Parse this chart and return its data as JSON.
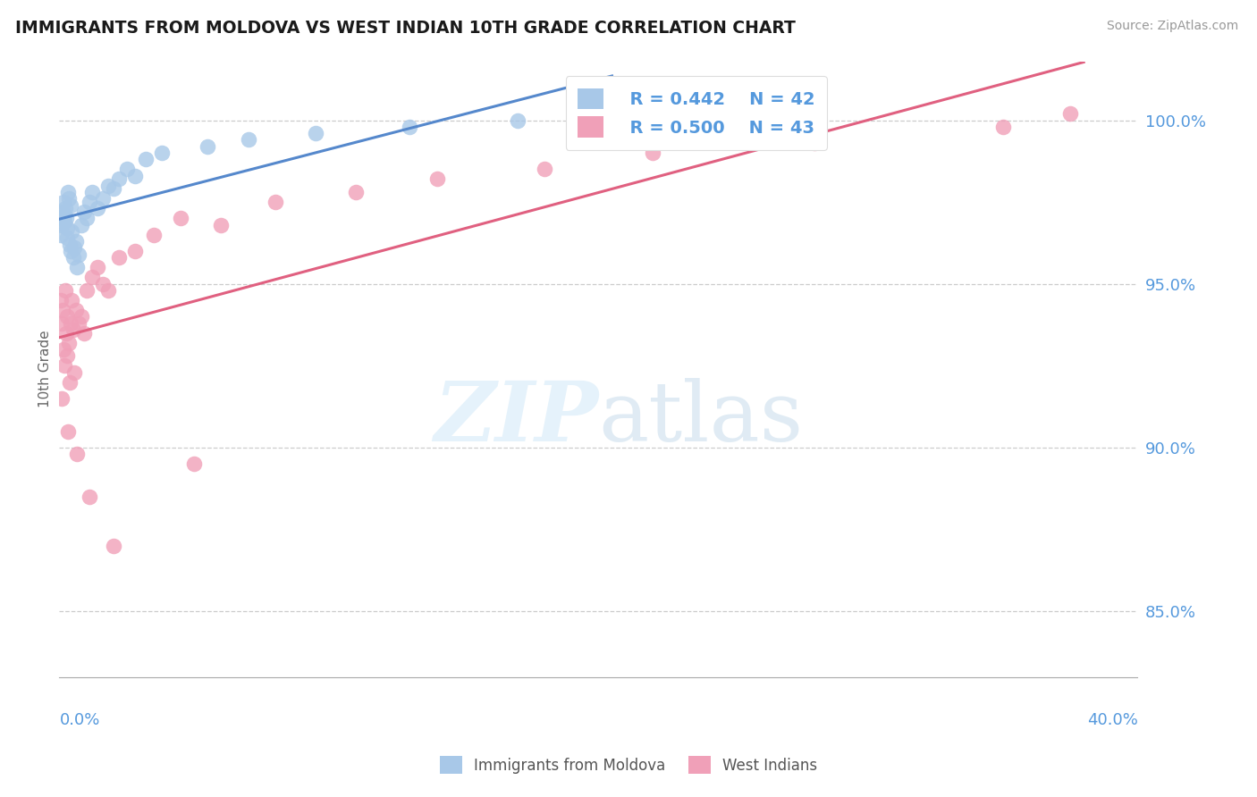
{
  "title": "IMMIGRANTS FROM MOLDOVA VS WEST INDIAN 10TH GRADE CORRELATION CHART",
  "source": "Source: ZipAtlas.com",
  "ylabel": "10th Grade",
  "xmin": 0.0,
  "xmax": 40.0,
  "ymin": 83.0,
  "ymax": 101.8,
  "yticks": [
    85.0,
    90.0,
    95.0,
    100.0
  ],
  "ytick_labels": [
    "85.0%",
    "90.0%",
    "95.0%",
    "100.0%"
  ],
  "legend_r1": "R = 0.442",
  "legend_n1": "N = 42",
  "legend_r2": "R = 0.500",
  "legend_n2": "N = 43",
  "color_moldova": "#a8c8e8",
  "color_westindian": "#f0a0b8",
  "color_moldova_line": "#5588cc",
  "color_westindian_line": "#e06080",
  "color_axis_text": "#5599dd",
  "moldova_x": [
    0.05,
    0.08,
    0.1,
    0.12,
    0.15,
    0.18,
    0.2,
    0.22,
    0.25,
    0.28,
    0.3,
    0.32,
    0.35,
    0.38,
    0.4,
    0.42,
    0.45,
    0.5,
    0.55,
    0.6,
    0.65,
    0.7,
    0.8,
    0.9,
    1.0,
    1.1,
    1.2,
    1.4,
    1.6,
    1.8,
    2.0,
    2.2,
    2.5,
    2.8,
    3.2,
    3.8,
    5.5,
    7.0,
    9.5,
    13.0,
    17.0,
    20.5
  ],
  "moldova_y": [
    96.5,
    97.0,
    96.8,
    97.2,
    97.5,
    97.1,
    96.9,
    97.3,
    97.0,
    96.7,
    96.4,
    97.8,
    97.6,
    96.2,
    96.0,
    97.4,
    96.6,
    95.8,
    96.1,
    96.3,
    95.5,
    95.9,
    96.8,
    97.2,
    97.0,
    97.5,
    97.8,
    97.3,
    97.6,
    98.0,
    97.9,
    98.2,
    98.5,
    98.3,
    98.8,
    99.0,
    99.2,
    99.4,
    99.6,
    99.8,
    100.0,
    100.3
  ],
  "westindian_x": [
    0.05,
    0.08,
    0.12,
    0.15,
    0.18,
    0.22,
    0.25,
    0.28,
    0.3,
    0.35,
    0.38,
    0.4,
    0.45,
    0.5,
    0.55,
    0.6,
    0.7,
    0.8,
    0.9,
    1.0,
    1.2,
    1.4,
    1.6,
    1.8,
    2.2,
    2.8,
    3.5,
    4.5,
    6.0,
    8.0,
    11.0,
    14.0,
    18.0,
    22.0,
    28.0,
    35.0,
    37.5,
    0.1,
    0.32,
    0.65,
    1.1,
    2.0,
    5.0
  ],
  "westindian_y": [
    94.5,
    93.8,
    94.2,
    93.0,
    92.5,
    94.8,
    93.5,
    92.8,
    94.0,
    93.2,
    92.0,
    93.8,
    94.5,
    93.6,
    92.3,
    94.2,
    93.8,
    94.0,
    93.5,
    94.8,
    95.2,
    95.5,
    95.0,
    94.8,
    95.8,
    96.0,
    96.5,
    97.0,
    96.8,
    97.5,
    97.8,
    98.2,
    98.5,
    99.0,
    99.3,
    99.8,
    100.2,
    91.5,
    90.5,
    89.8,
    88.5,
    87.0,
    89.5
  ]
}
